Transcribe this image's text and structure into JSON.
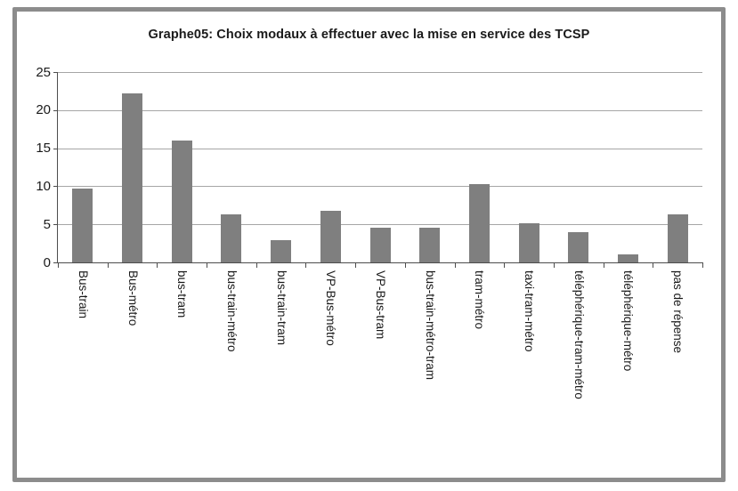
{
  "chart_data": {
    "type": "bar",
    "title": "Graphe05: Choix modaux à effectuer avec la mise en service des TCSP",
    "categories": [
      "Bus-train",
      "Bus-métro",
      "bus-tram",
      "bus-train-métro",
      "bus-train-tram",
      "VP-Bus-métro",
      "VP-Bus-tram",
      "bus-train-métro-tram",
      "tram-métro",
      "taxi-tram-métro",
      "téléphérique-tram-métro",
      "téléphérique-métro",
      "pas de répense"
    ],
    "values": [
      9.7,
      22.2,
      16,
      6.3,
      2.9,
      6.8,
      4.6,
      4.6,
      10.3,
      5.1,
      4,
      1.1,
      6.3
    ],
    "xlabel": "",
    "ylabel": "",
    "ylim": [
      0,
      25
    ],
    "yticks": [
      0,
      5,
      10,
      15,
      20,
      25
    ],
    "grid": true,
    "legend_position": "none",
    "bar_color": "#7f7f7f",
    "gridline_color": "#a6a6a6",
    "axis_color": "#4d4d4d",
    "text_color": "#1a1a1a",
    "frame_border_color": "#8c8c8c",
    "background": "#ffffff"
  }
}
